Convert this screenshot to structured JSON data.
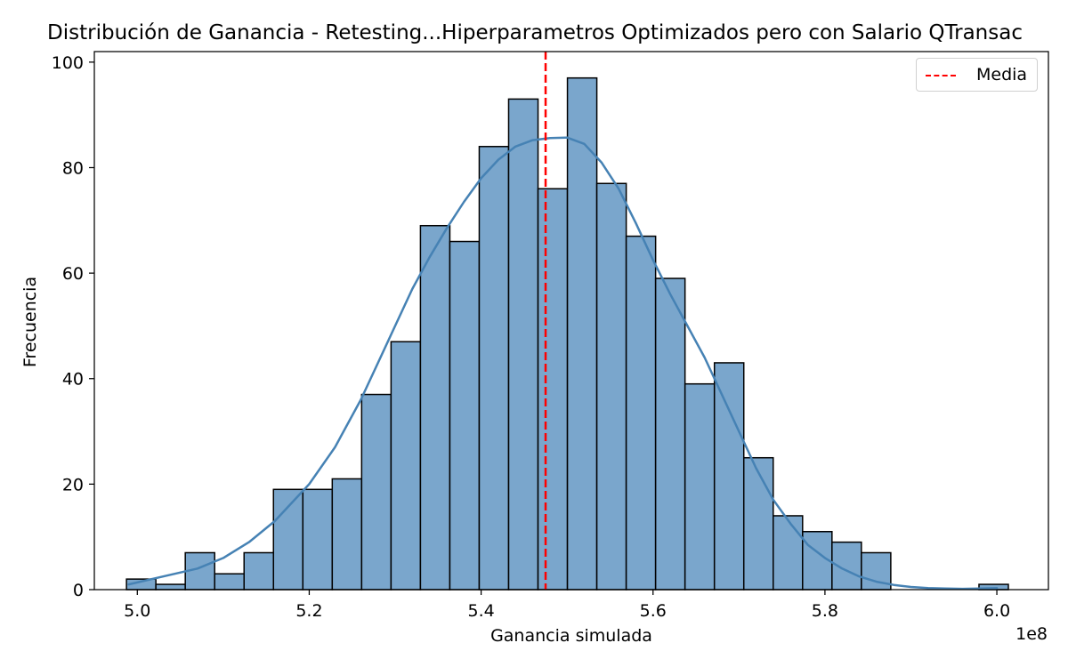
{
  "chart_data": {
    "type": "bar",
    "title": "Distribución de Ganancia - Retesting...Hiperparametros Optimizados pero con Salario  QTransac",
    "xlabel": "Ganancia simulada",
    "ylabel": "Frecuencia",
    "x_offset_label": "1e8",
    "xlim": [
      4.95,
      6.06
    ],
    "ylim": [
      0,
      102
    ],
    "x_ticks": [
      5.0,
      5.2,
      5.4,
      5.6,
      5.8,
      6.0
    ],
    "x_tick_labels": [
      "5.0",
      "5.2",
      "5.4",
      "5.6",
      "5.8",
      "6.0"
    ],
    "y_ticks": [
      0,
      20,
      40,
      60,
      80,
      100
    ],
    "y_tick_labels": [
      "0",
      "20",
      "40",
      "60",
      "80",
      "100"
    ],
    "bin_start": 4.9874,
    "bin_width": 0.0342,
    "bin_values": [
      2,
      1,
      7,
      3,
      7,
      19,
      19,
      21,
      37,
      47,
      69,
      66,
      84,
      93,
      76,
      97,
      77,
      67,
      59,
      39,
      43,
      25,
      14,
      11,
      9,
      7,
      0,
      0,
      0,
      1
    ],
    "bar_color": "#7aa6cc",
    "kde_color": "#4682b4",
    "kde": {
      "x": [
        4.99,
        5.03,
        5.07,
        5.1,
        5.13,
        5.16,
        5.2,
        5.23,
        5.26,
        5.28,
        5.3,
        5.32,
        5.34,
        5.36,
        5.38,
        5.4,
        5.42,
        5.44,
        5.46,
        5.48,
        5.5,
        5.52,
        5.54,
        5.56,
        5.58,
        5.6,
        5.62,
        5.64,
        5.66,
        5.68,
        5.7,
        5.72,
        5.74,
        5.76,
        5.78,
        5.8,
        5.82,
        5.84,
        5.86,
        5.88,
        5.9,
        5.92,
        5.94,
        5.96,
        5.98,
        6.0
      ],
      "y": [
        1,
        2.5,
        4,
        6,
        9,
        13,
        20,
        27,
        36,
        43,
        50,
        57,
        63,
        68.5,
        73.5,
        78,
        81.5,
        84,
        85.2,
        85.6,
        85.7,
        84.5,
        81,
        76,
        69.5,
        62.5,
        56,
        50,
        44,
        37,
        30,
        23,
        17,
        12.5,
        8.5,
        6,
        4,
        2.5,
        1.5,
        0.9,
        0.5,
        0.3,
        0.2,
        0.15,
        0.2,
        0.3
      ]
    },
    "mean_line": {
      "x": 5.475,
      "label": "Media",
      "color": "#ff0000"
    },
    "legend": {
      "position": "top-right",
      "entries": [
        "Media"
      ]
    },
    "grid": false
  }
}
